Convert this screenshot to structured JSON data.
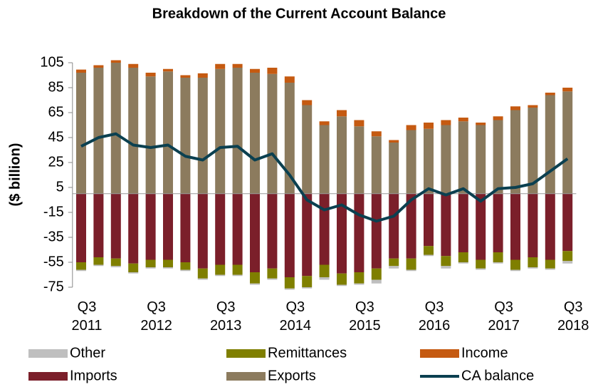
{
  "chart_data": {
    "type": "bar",
    "stacked": true,
    "title": "Breakdown of the Current Account Balance",
    "y_label": "($ billion)",
    "categories": [
      "Q3 2011",
      null,
      null,
      null,
      "Q3 2012",
      null,
      null,
      null,
      "Q3 2013",
      null,
      null,
      null,
      "Q3 2014",
      null,
      null,
      null,
      "Q3 2015",
      null,
      null,
      null,
      "Q3 2016",
      null,
      null,
      null,
      "Q3 2017",
      null,
      null,
      null,
      "Q3 2018"
    ],
    "ylim": [
      -75,
      105
    ],
    "yticks": [
      -75,
      -55,
      -35,
      -15,
      5,
      25,
      45,
      65,
      85,
      105
    ],
    "series": [
      {
        "name": "Exports",
        "color": "#8c7b5e",
        "values": [
          97,
          101,
          105,
          101,
          94,
          98,
          93,
          93,
          100,
          101,
          97,
          96,
          89,
          71,
          55,
          62,
          54,
          46,
          41,
          51,
          52,
          55,
          58,
          55,
          59,
          67,
          69,
          79,
          82
        ]
      },
      {
        "name": "Income",
        "color": "#c55a11",
        "values": [
          2.5,
          2,
          2,
          3,
          3,
          2,
          2,
          3.5,
          4,
          3,
          3,
          5,
          5,
          4,
          3,
          5,
          5,
          4,
          2,
          4,
          5,
          4,
          3,
          2,
          3,
          3,
          2,
          2,
          3
        ]
      },
      {
        "name": "Imports",
        "color": "#7b1f2a",
        "values": [
          -55,
          -51,
          -52,
          -56,
          -53,
          -53,
          -55,
          -60,
          -57,
          -57,
          -63,
          -60,
          -67,
          -66,
          -57,
          -64,
          -63,
          -60,
          -52,
          -52,
          -42,
          -50,
          -47,
          -53,
          -47,
          -53,
          -51,
          -53,
          -46
        ]
      },
      {
        "name": "Remittances",
        "color": "#7f7f00",
        "values": [
          -6,
          -6,
          -6,
          -7,
          -6,
          -6,
          -6,
          -8,
          -8,
          -8,
          -9,
          -8,
          -9,
          -9,
          -10,
          -9,
          -9,
          -9,
          -6,
          -9,
          -7,
          -8,
          -8,
          -7,
          -8,
          -8,
          -8,
          -7,
          -8
        ]
      },
      {
        "name": "Other",
        "color": "#bfbfbf",
        "values": [
          -1,
          -1,
          -1,
          -1,
          -1,
          -1,
          -1,
          -1,
          -1,
          -1,
          -1,
          -1,
          -1,
          -1,
          -2,
          -1,
          -1,
          -3,
          -2,
          -1,
          -1,
          -2,
          -1,
          -1,
          -1,
          -1,
          -1,
          -1,
          -2
        ]
      },
      {
        "name": "CA balance",
        "type": "line",
        "color": "#0b4050",
        "values": [
          38,
          45,
          48,
          39,
          37,
          39,
          30,
          27,
          37,
          38,
          27,
          32,
          15,
          -5,
          -13,
          -9,
          -17,
          -22,
          -18,
          -5,
          4,
          -1,
          4,
          -6,
          4,
          5,
          8,
          18,
          28
        ]
      }
    ]
  }
}
